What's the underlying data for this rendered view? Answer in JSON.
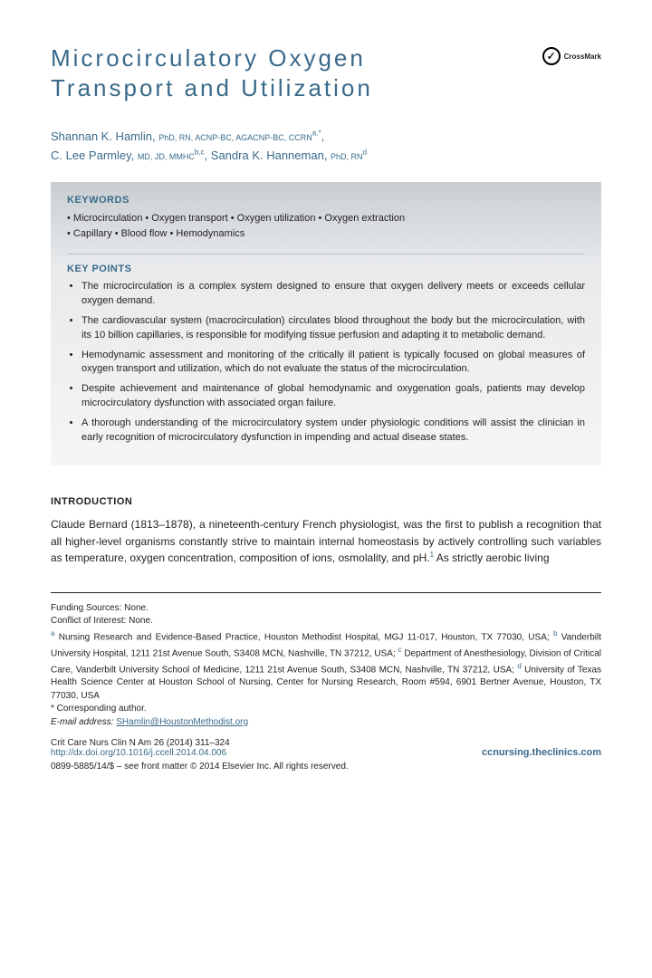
{
  "colors": {
    "accent": "#3a6a8a",
    "text": "#231f20",
    "box_grad_top": "#c9ced1",
    "box_grad_mid": "#e8eaec",
    "box_grad_bot": "#f4f5f6",
    "page_bg": "#ffffff"
  },
  "typography": {
    "title_fontsize": 26,
    "title_letterspacing": 3,
    "body_fontsize": 12,
    "footer_fontsize": 10,
    "box_fontsize": 11
  },
  "title": "Microcirculatory Oxygen Transport and Utilization",
  "crossmark": {
    "label": "CrossMark",
    "icon": "✓"
  },
  "authors": [
    {
      "name": "Shannan K. Hamlin",
      "credentials": "PhD, RN, ACNP-BC, AGACNP-BC, CCRN",
      "affils": "a,*"
    },
    {
      "name": "C. Lee Parmley",
      "credentials": "MD, JD, MMHC",
      "affils": "b,c"
    },
    {
      "name": "Sandra K. Hanneman",
      "credentials": "PhD, RN",
      "affils": "d"
    }
  ],
  "keywords_heading": "KEYWORDS",
  "keywords_line1": "Microcirculation • Oxygen transport • Oxygen utilization • Oxygen extraction",
  "keywords_line2": "Capillary • Blood flow • Hemodynamics",
  "keypoints_heading": "KEY POINTS",
  "keypoints": [
    "The microcirculation is a complex system designed to ensure that oxygen delivery meets or exceeds cellular oxygen demand.",
    "The cardiovascular system (macrocirculation) circulates blood throughout the body but the microcirculation, with its 10 billion capillaries, is responsible for modifying tissue perfusion and adapting it to metabolic demand.",
    "Hemodynamic assessment and monitoring of the critically ill patient is typically focused on global measures of oxygen transport and utilization, which do not evaluate the status of the microcirculation.",
    "Despite achievement and maintenance of global hemodynamic and oxygenation goals, patients may develop microcirculatory dysfunction with associated organ failure.",
    "A thorough understanding of the microcirculatory system under physiologic conditions will assist the clinician in early recognition of microcirculatory dysfunction in impending and actual disease states."
  ],
  "intro_heading": "INTRODUCTION",
  "intro_text": "Claude Bernard (1813–1878), a nineteenth-century French physiologist, was the first to publish a recognition that all higher-level organisms constantly strive to maintain internal homeostasis by actively controlling such variables as temperature, oxygen concentration, composition of ions, osmolality, and pH.",
  "intro_ref": "1",
  "intro_tail": " As strictly aerobic living",
  "footer": {
    "funding": "Funding Sources: None.",
    "coi": "Conflict of Interest: None.",
    "affiliations": " Nursing Research and Evidence-Based Practice, Houston Methodist Hospital, MGJ 11-017, Houston, TX 77030, USA; ",
    "aff_b": " Vanderbilt University Hospital, 1211 21st Avenue South, S3408 MCN, Nashville, TN 37212, USA; ",
    "aff_c": " Department of Anesthesiology, Division of Critical Care, Vanderbilt University School of Medicine, 1211 21st Avenue South, S3408 MCN, Nashville, TN 37212, USA; ",
    "aff_d": " University of Texas Health Science Center at Houston School of Nursing, Center for Nursing Research, Room #594, 6901 Bertner Avenue, Houston, TX 77030, USA",
    "corr": "* Corresponding author.",
    "email_label": "E-mail address: ",
    "email": "SHamlin@HoustonMethodist.org",
    "journal": "Crit Care Nurs Clin N Am 26 (2014) 311–324",
    "doi": "http://dx.doi.org/10.1016/j.ccell.2014.04.006",
    "site": "ccnursing.theclinics.com",
    "copyright": "0899-5885/14/$ – see front matter © 2014 Elsevier Inc. All rights reserved."
  }
}
